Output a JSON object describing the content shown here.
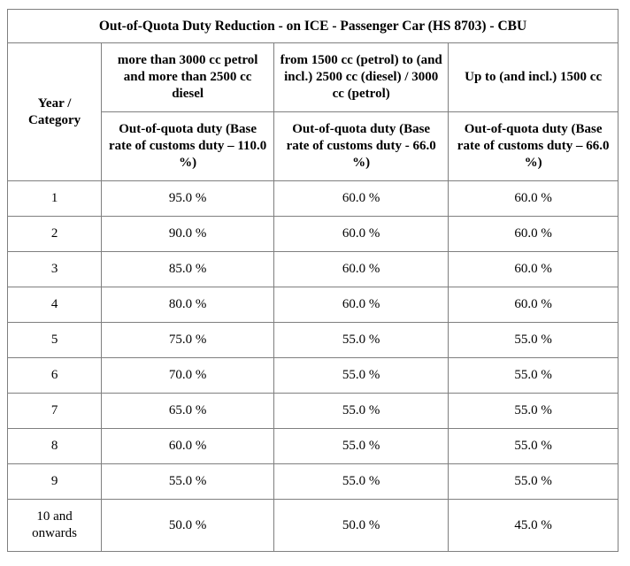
{
  "table": {
    "title": "Out-of-Quota Duty Reduction - on ICE - Passenger Car (HS 8703) - CBU",
    "row_header": "Year / Category",
    "categories": [
      "more than 3000 cc petrol and more than 2500 cc diesel",
      "from 1500 cc (petrol) to (and incl.) 2500 cc (diesel) / 3000 cc (petrol)",
      "Up to (and incl.) 1500 cc"
    ],
    "subheaders": [
      "Out-of-quota duty (Base rate of customs duty – 110.0 %)",
      "Out-of-quota duty (Base rate of customs duty - 66.0 %)",
      "Out-of-quota duty (Base rate of customs duty – 66.0 %)"
    ],
    "rows": [
      {
        "year": "1",
        "values": [
          "95.0 %",
          "60.0 %",
          "60.0 %"
        ]
      },
      {
        "year": "2",
        "values": [
          "90.0 %",
          "60.0 %",
          "60.0 %"
        ]
      },
      {
        "year": "3",
        "values": [
          "85.0 %",
          "60.0 %",
          "60.0 %"
        ]
      },
      {
        "year": "4",
        "values": [
          "80.0 %",
          "60.0 %",
          "60.0 %"
        ]
      },
      {
        "year": "5",
        "values": [
          "75.0 %",
          "55.0 %",
          "55.0 %"
        ]
      },
      {
        "year": "6",
        "values": [
          "70.0 %",
          "55.0 %",
          "55.0 %"
        ]
      },
      {
        "year": "7",
        "values": [
          "65.0 %",
          "55.0 %",
          "55.0 %"
        ]
      },
      {
        "year": "8",
        "values": [
          "60.0 %",
          "55.0 %",
          "55.0 %"
        ]
      },
      {
        "year": "9",
        "values": [
          "55.0 %",
          "55.0 %",
          "55.0 %"
        ]
      },
      {
        "year": "10 and onwards",
        "values": [
          "50.0 %",
          "50.0 %",
          "45.0 %"
        ]
      }
    ]
  }
}
